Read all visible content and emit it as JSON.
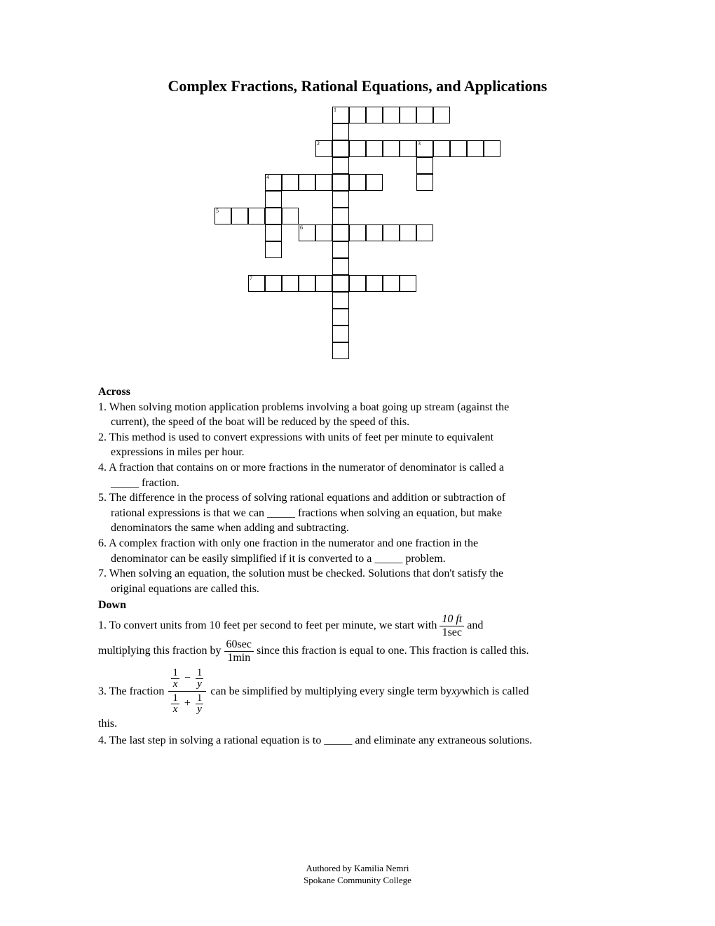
{
  "title": "Complex Fractions, Rational Equations, and Applications",
  "crossword": {
    "cell_size": 24,
    "cols": 17,
    "rows": 15,
    "cells": [
      {
        "r": 1,
        "c": 8,
        "n": "1"
      },
      {
        "r": 1,
        "c": 9
      },
      {
        "r": 1,
        "c": 10
      },
      {
        "r": 1,
        "c": 11
      },
      {
        "r": 1,
        "c": 12
      },
      {
        "r": 1,
        "c": 13
      },
      {
        "r": 1,
        "c": 14
      },
      {
        "r": 2,
        "c": 8
      },
      {
        "r": 3,
        "c": 7,
        "n": "2"
      },
      {
        "r": 3,
        "c": 8
      },
      {
        "r": 3,
        "c": 9
      },
      {
        "r": 3,
        "c": 10
      },
      {
        "r": 3,
        "c": 11
      },
      {
        "r": 3,
        "c": 12
      },
      {
        "r": 3,
        "c": 13,
        "n": "3"
      },
      {
        "r": 3,
        "c": 14
      },
      {
        "r": 3,
        "c": 15
      },
      {
        "r": 3,
        "c": 16
      },
      {
        "r": 3,
        "c": 17
      },
      {
        "r": 4,
        "c": 8
      },
      {
        "r": 4,
        "c": 13
      },
      {
        "r": 5,
        "c": 4,
        "n": "4"
      },
      {
        "r": 5,
        "c": 5
      },
      {
        "r": 5,
        "c": 6
      },
      {
        "r": 5,
        "c": 7
      },
      {
        "r": 5,
        "c": 8
      },
      {
        "r": 5,
        "c": 9
      },
      {
        "r": 5,
        "c": 10
      },
      {
        "r": 5,
        "c": 13
      },
      {
        "r": 6,
        "c": 4
      },
      {
        "r": 6,
        "c": 8
      },
      {
        "r": 7,
        "c": 1,
        "n": "5"
      },
      {
        "r": 7,
        "c": 2
      },
      {
        "r": 7,
        "c": 3
      },
      {
        "r": 7,
        "c": 4
      },
      {
        "r": 7,
        "c": 5
      },
      {
        "r": 7,
        "c": 8
      },
      {
        "r": 8,
        "c": 4
      },
      {
        "r": 8,
        "c": 6,
        "n": "6"
      },
      {
        "r": 8,
        "c": 7
      },
      {
        "r": 8,
        "c": 8
      },
      {
        "r": 8,
        "c": 9
      },
      {
        "r": 8,
        "c": 10
      },
      {
        "r": 8,
        "c": 11
      },
      {
        "r": 8,
        "c": 12
      },
      {
        "r": 8,
        "c": 13
      },
      {
        "r": 9,
        "c": 4
      },
      {
        "r": 9,
        "c": 8
      },
      {
        "r": 10,
        "c": 8
      },
      {
        "r": 11,
        "c": 3,
        "n": "7"
      },
      {
        "r": 11,
        "c": 4
      },
      {
        "r": 11,
        "c": 5
      },
      {
        "r": 11,
        "c": 6
      },
      {
        "r": 11,
        "c": 7
      },
      {
        "r": 11,
        "c": 8
      },
      {
        "r": 11,
        "c": 9
      },
      {
        "r": 11,
        "c": 10
      },
      {
        "r": 11,
        "c": 11
      },
      {
        "r": 11,
        "c": 12
      },
      {
        "r": 12,
        "c": 8
      },
      {
        "r": 13,
        "c": 8
      },
      {
        "r": 14,
        "c": 8
      },
      {
        "r": 15,
        "c": 8
      }
    ]
  },
  "across": {
    "heading": "Across",
    "c1": "1.  When solving motion application problems involving a boat going up stream (against the",
    "c1b": "current), the speed of the boat will be reduced by the speed of this.",
    "c2": "2.  This method is used to convert expressions with units of feet per minute to equivalent",
    "c2b": "expressions in miles per hour.",
    "c4": "4.  A fraction that contains on or more fractions in the numerator of denominator is called a",
    "c4b": "_____ fraction.",
    "c5": "5.  The difference in the process of solving rational equations and addition or subtraction of",
    "c5b": "rational expressions is that we can _____ fractions when solving an equation, but make",
    "c5c": "denominators the same when adding and subtracting.",
    "c6": "6.  A complex fraction with only one fraction in the numerator and one fraction in the",
    "c6b": "denominator can be easily simplified if it is converted to a _____ problem.",
    "c7": "7.  When solving an equation, the solution must be checked.  Solutions that don't satisfy the",
    "c7b": "original equations are called this."
  },
  "down": {
    "heading": "Down",
    "d1a": "1.  To convert units from 10 feet per second to feet per minute, we start with ",
    "d1_frac1_num": "10 ft",
    "d1_frac1_den": "1sec",
    "d1b": " and",
    "d1c": "multiplying this fraction by ",
    "d1_frac2_num": "60sec",
    "d1_frac2_den": "1min",
    "d1d": " since this fraction is equal to one.  This fraction is called this.",
    "d3a": "3.  The fraction ",
    "d3_top_left_num": "1",
    "d3_top_left_den": "x",
    "d3_minus": "−",
    "d3_top_right_num": "1",
    "d3_top_right_den": "y",
    "d3_bot_left_num": "1",
    "d3_bot_left_den": "x",
    "d3_plus": "+",
    "d3_bot_right_num": "1",
    "d3_bot_right_den": "y",
    "d3b": "can be simplified by multiplying every single term by ",
    "d3_xy": "xy",
    "d3c": " which is called",
    "d3d": "this.",
    "d4": "4.  The last step in solving a rational equation is to _____ and eliminate any extraneous solutions."
  },
  "footer": {
    "line1": "Authored by Kamilia Nemri",
    "line2": "Spokane Community College"
  }
}
